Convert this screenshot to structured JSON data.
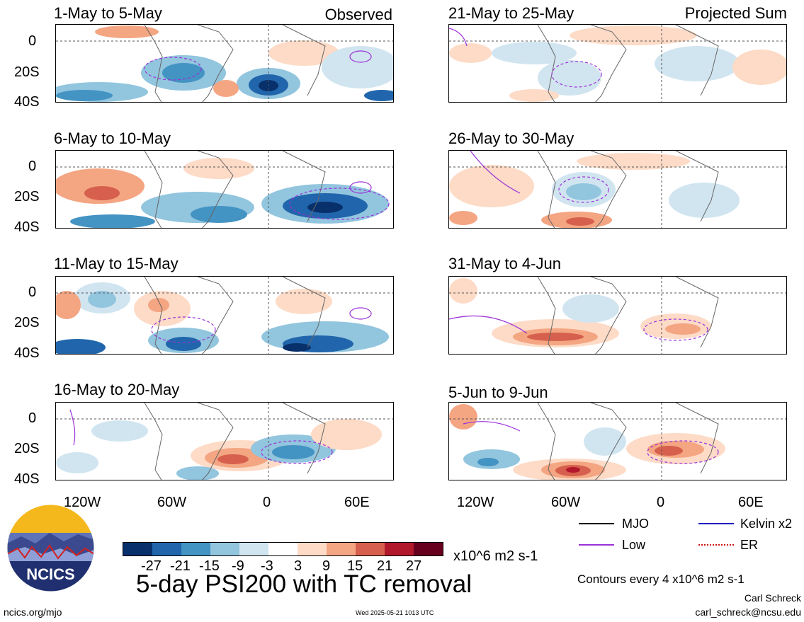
{
  "panels": [
    {
      "title": "1-May to 5-May",
      "tag": "Observed"
    },
    {
      "title": "21-May to 25-May",
      "tag": "Projected Sum"
    },
    {
      "title": "6-May to 10-May",
      "tag": ""
    },
    {
      "title": "26-May to 30-May",
      "tag": ""
    },
    {
      "title": "11-May to 15-May",
      "tag": ""
    },
    {
      "title": "31-May to 4-Jun",
      "tag": ""
    },
    {
      "title": "16-May to 20-May",
      "tag": ""
    },
    {
      "title": "5-Jun to 9-Jun",
      "tag": ""
    }
  ],
  "lat_labels": [
    "0",
    "20S",
    "40S"
  ],
  "lon_labels": [
    "120W",
    "60W",
    "0",
    "60E"
  ],
  "colorbar": {
    "labels": [
      "-27",
      "-21",
      "-15",
      "-9",
      "-3",
      "3",
      "9",
      "15",
      "21",
      "27"
    ],
    "colors": [
      "#08306b",
      "#2166ac",
      "#4393c3",
      "#92c5de",
      "#d1e5f0",
      "#ffffff",
      "#fddbc7",
      "#f4a582",
      "#d6604d",
      "#b2182b",
      "#67001f"
    ],
    "units": "x10^6 m2 s-1"
  },
  "legend": {
    "items": [
      {
        "label": "MJO",
        "color": "#000000"
      },
      {
        "label": "Kelvin x2",
        "color": "#1f1fbf"
      },
      {
        "label": "Low",
        "color": "#9b30d9"
      },
      {
        "label": "ER",
        "color": "#d01010"
      }
    ],
    "contours": "Contours every 4 x10^6 m2 s-1"
  },
  "logo": {
    "text": "NCICS"
  },
  "main_title": "5-day PSI200 with TC removal",
  "footer": {
    "website": "ncics.org/mjo",
    "timestamp": "Wed 2025-05-21 1013 UTC",
    "author": "Carl Schreck",
    "email": "carl_schreck@ncsu.edu"
  }
}
